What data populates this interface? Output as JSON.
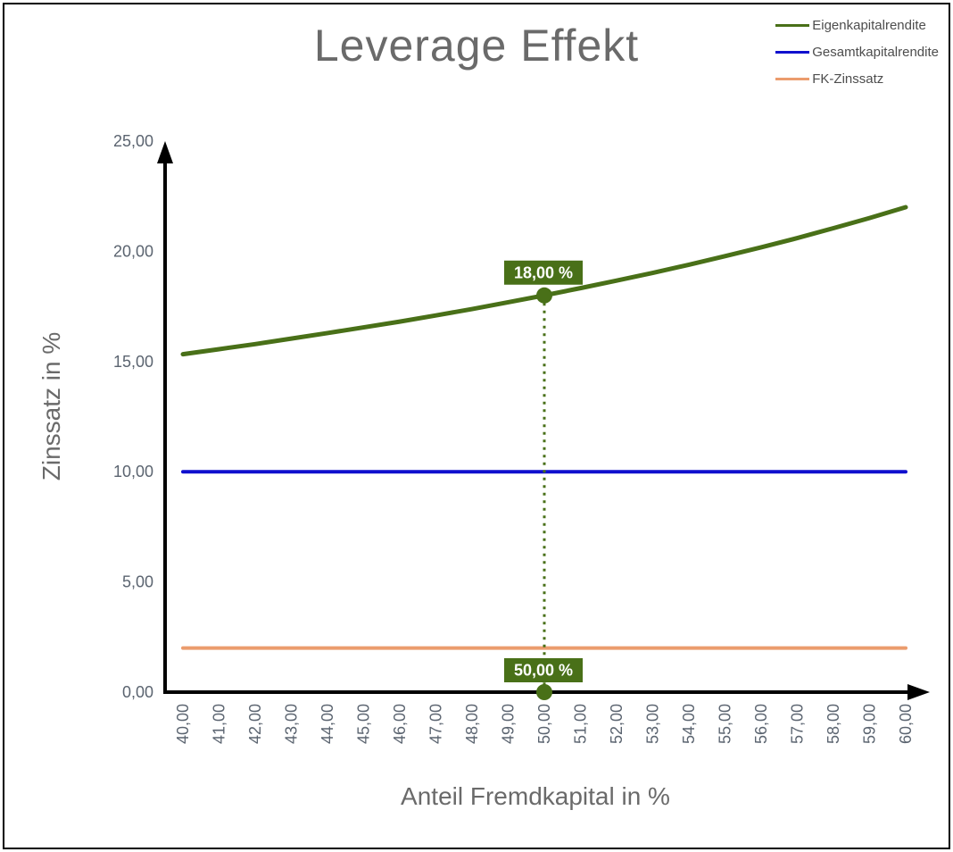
{
  "title": "Leverage Effekt",
  "legend": [
    {
      "label": "Eigenkapitalrendite",
      "color": "#497018"
    },
    {
      "label": "Gesamtkapitalrendite",
      "color": "#0F0FCE"
    },
    {
      "label": "FK-Zinssatz",
      "color": "#EB9C6D"
    }
  ],
  "chart_data": {
    "type": "line",
    "title": "Leverage Effekt",
    "xlabel": "Anteil Fremdkapital in %",
    "ylabel": "Zinssatz in %",
    "xlim": [
      40,
      60
    ],
    "ylim": [
      0,
      25
    ],
    "grid": false,
    "legend_position": "top-right",
    "x": [
      40,
      41,
      42,
      43,
      44,
      45,
      46,
      47,
      48,
      49,
      50,
      51,
      52,
      53,
      54,
      55,
      56,
      57,
      58,
      59,
      60
    ],
    "series": [
      {
        "name": "Eigenkapitalrendite",
        "color": "#497018",
        "values": [
          15.33,
          15.56,
          15.79,
          16.04,
          16.29,
          16.55,
          16.81,
          17.09,
          17.38,
          17.69,
          18.0,
          18.33,
          18.67,
          19.02,
          19.39,
          19.78,
          20.18,
          20.6,
          21.05,
          21.51,
          22.0
        ]
      },
      {
        "name": "Gesamtkapitalrendite",
        "color": "#0F0FCE",
        "values": [
          10,
          10,
          10,
          10,
          10,
          10,
          10,
          10,
          10,
          10,
          10,
          10,
          10,
          10,
          10,
          10,
          10,
          10,
          10,
          10,
          10
        ]
      },
      {
        "name": "FK-Zinssatz",
        "color": "#EB9C6D",
        "values": [
          2,
          2,
          2,
          2,
          2,
          2,
          2,
          2,
          2,
          2,
          2,
          2,
          2,
          2,
          2,
          2,
          2,
          2,
          2,
          2,
          2
        ]
      }
    ],
    "y_ticks": [
      {
        "v": 0,
        "t": "0,00"
      },
      {
        "v": 5,
        "t": "5,00"
      },
      {
        "v": 10,
        "t": "10,00"
      },
      {
        "v": 15,
        "t": "15,00"
      },
      {
        "v": 20,
        "t": "20,00"
      },
      {
        "v": 25,
        "t": "25,00"
      }
    ],
    "x_ticks": [
      {
        "v": 40,
        "t": "40,00"
      },
      {
        "v": 41,
        "t": "41,00"
      },
      {
        "v": 42,
        "t": "42,00"
      },
      {
        "v": 43,
        "t": "43,00"
      },
      {
        "v": 44,
        "t": "44,00"
      },
      {
        "v": 45,
        "t": "45,00"
      },
      {
        "v": 46,
        "t": "46,00"
      },
      {
        "v": 47,
        "t": "47,00"
      },
      {
        "v": 48,
        "t": "48,00"
      },
      {
        "v": 49,
        "t": "49,00"
      },
      {
        "v": 50,
        "t": "50,00"
      },
      {
        "v": 51,
        "t": "51,00"
      },
      {
        "v": 52,
        "t": "52,00"
      },
      {
        "v": 53,
        "t": "53,00"
      },
      {
        "v": 54,
        "t": "54,00"
      },
      {
        "v": 55,
        "t": "55,00"
      },
      {
        "v": 56,
        "t": "56,00"
      },
      {
        "v": 57,
        "t": "57,00"
      },
      {
        "v": 58,
        "t": "58,00"
      },
      {
        "v": 59,
        "t": "59,00"
      },
      {
        "v": 60,
        "t": "60,00"
      }
    ],
    "annotations": {
      "point": {
        "x": 50,
        "y": 18,
        "label": "18,00 %"
      },
      "axis_marker": {
        "x": 50,
        "label": "50,00 %"
      },
      "badge_color": "#497018",
      "badge_text_color": "#FFFFFF"
    }
  }
}
